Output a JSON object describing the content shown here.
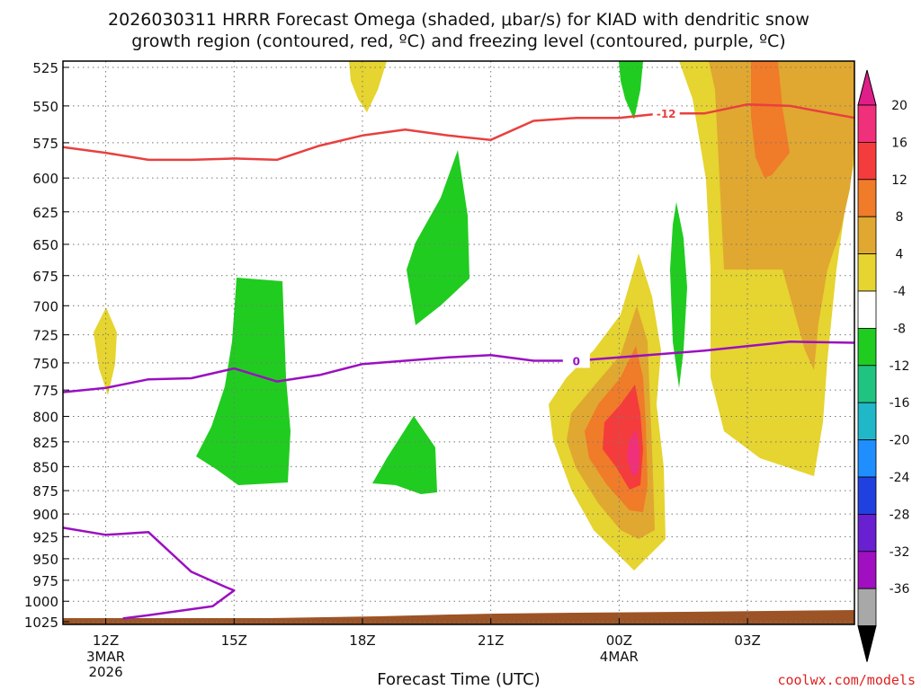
{
  "chart_data": {
    "type": "heatmap",
    "title_line1": "2026030311 HRRR Forecast Omega (shaded, μbar/s) for KIAD with dendritic snow",
    "title_line2": "growth region (contoured, red, ºC) and freezing level (contoured, purple, ºC)",
    "xlabel": "Forecast Time (UTC)",
    "credit": "coolwx.com/models",
    "pressure_levels": [
      "525",
      "550",
      "575",
      "600",
      "625",
      "650",
      "675",
      "700",
      "725",
      "750",
      "775",
      "800",
      "825",
      "850",
      "875",
      "900",
      "925",
      "950",
      "975",
      "1000",
      "1025"
    ],
    "x_ticks": [
      {
        "hour": 0,
        "label": "12Z",
        "sub": [
          "3MAR",
          "2026"
        ]
      },
      {
        "hour": 3,
        "label": "15Z",
        "sub": []
      },
      {
        "hour": 6,
        "label": "18Z",
        "sub": []
      },
      {
        "hour": 9,
        "label": "21Z",
        "sub": []
      },
      {
        "hour": 12,
        "label": "00Z",
        "sub": [
          "4MAR"
        ]
      },
      {
        "hour": 15,
        "label": "03Z",
        "sub": []
      }
    ],
    "x_range_hours": [
      -1,
      17.5
    ],
    "colorbar": {
      "labels": [
        "20",
        "16",
        "12",
        "8",
        "4",
        "-4",
        "-8",
        "-12",
        "-16",
        "-20",
        "-24",
        "-28",
        "-32",
        "-36"
      ],
      "colors": [
        "#f0307a",
        "#f53c3c",
        "#f07b28",
        "#e0a830",
        "#e6d430",
        "#ffffff",
        "#20cc20",
        "#20c480",
        "#20b8c8",
        "#1f8fff",
        "#2040e0",
        "#6820d0",
        "#a010c0",
        "#a8a8a8"
      ],
      "top_arrow_color": "#e01e8a",
      "bottom_arrow_color": "#000000"
    },
    "contour_labels": {
      "dgz": "-12",
      "freezing": "0"
    },
    "series": [
      {
        "name": "dgz_minus12",
        "color": "#e84040",
        "points": [
          [
            -1,
            578
          ],
          [
            0,
            582
          ],
          [
            1,
            587
          ],
          [
            2,
            587
          ],
          [
            3,
            586
          ],
          [
            4,
            587
          ],
          [
            5,
            577
          ],
          [
            6,
            570
          ],
          [
            7,
            566
          ],
          [
            8,
            570
          ],
          [
            9,
            573
          ],
          [
            10,
            560
          ],
          [
            11,
            558
          ],
          [
            12,
            558
          ],
          [
            13,
            555
          ],
          [
            14,
            555
          ],
          [
            15,
            549
          ],
          [
            16,
            550
          ],
          [
            17.5,
            558
          ]
        ]
      },
      {
        "name": "freezing_0",
        "color": "#9a10c0",
        "points": [
          [
            -1,
            777
          ],
          [
            0,
            773
          ],
          [
            1,
            765
          ],
          [
            2,
            764
          ],
          [
            3,
            755
          ],
          [
            4,
            767
          ],
          [
            5,
            761
          ],
          [
            6,
            751
          ],
          [
            7,
            748
          ],
          [
            8,
            745
          ],
          [
            9,
            743
          ],
          [
            10,
            748
          ],
          [
            11,
            748
          ],
          [
            12,
            745
          ],
          [
            13,
            742
          ],
          [
            14,
            739
          ],
          [
            15,
            735
          ],
          [
            16,
            731
          ],
          [
            17.5,
            732
          ]
        ]
      },
      {
        "name": "freezing_0_low",
        "color": "#9a10c0",
        "points": [
          [
            -1,
            915
          ],
          [
            0,
            923
          ],
          [
            1,
            920
          ],
          [
            2,
            965
          ],
          [
            2.8,
            983
          ],
          [
            3,
            987
          ],
          [
            2.5,
            1006
          ],
          [
            1,
            1017
          ],
          [
            0.4,
            1021
          ]
        ]
      }
    ],
    "values_unit": "microbar/s"
  }
}
